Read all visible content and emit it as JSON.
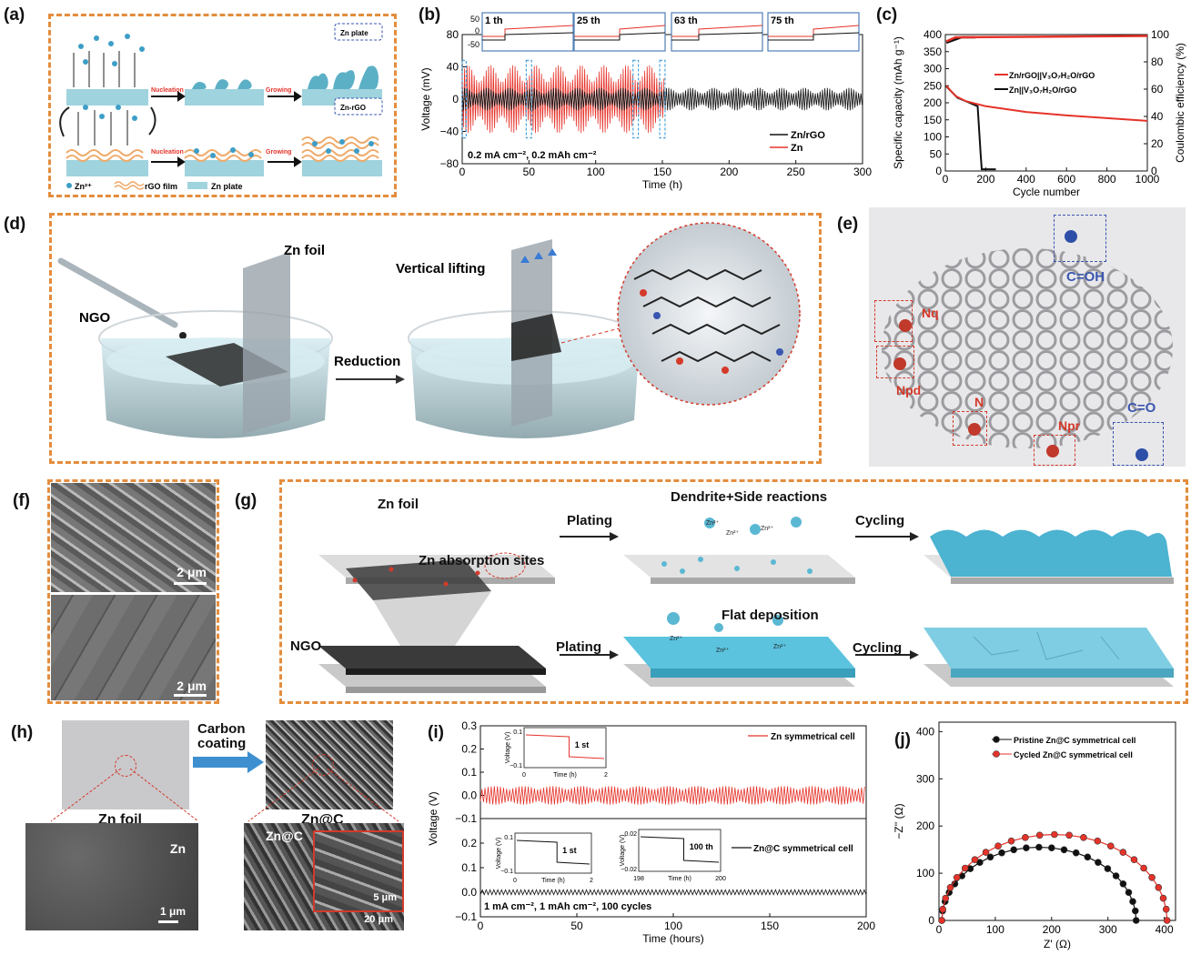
{
  "colors": {
    "orange_dash": "#e38d3d",
    "red": "#e5332a",
    "black": "#111111",
    "teal": "#5bb8d3",
    "navy": "#3a56b0"
  },
  "panels": {
    "a": {
      "label": "(a)",
      "top_tag": "Zn plate",
      "bottom_tag": "Zn-rGO",
      "nucleation": "Nucleation",
      "growing": "Growing",
      "legend": [
        "Zn²⁺",
        "rGO film",
        "Zn plate"
      ]
    },
    "b": {
      "label": "(b)",
      "insets": [
        "1 th",
        "25 th",
        "63 th",
        "75 th"
      ],
      "inset_ticks": [
        "50",
        "0",
        "-50"
      ],
      "annotation": "0.2 mA cm⁻², 0.2 mAh cm⁻²"
    },
    "c": {
      "label": "(c)"
    },
    "d": {
      "label": "(d)",
      "ngo": "NGO",
      "zn_foil": "Zn foil",
      "vertical_lifting": "Vertical lifting",
      "reduction": "Reduction"
    },
    "e": {
      "label": "(e)",
      "groups": [
        "C=OH",
        "Nq",
        "Npd",
        "N",
        "Npr",
        "C=O"
      ]
    },
    "f": {
      "label": "(f)",
      "scale": "2 μm"
    },
    "g": {
      "label": "(g)",
      "zn_foil": "Zn foil",
      "plating": "Plating",
      "cycling": "Cycling",
      "dendrite": "Dendrite+Side reactions",
      "absorption": "Zn absorption sites",
      "ngo": "NGO",
      "flat": "Flat deposition",
      "ion": "Zn²⁺"
    },
    "h": {
      "label": "(h)",
      "carbon_coating": "Carbon\ncoating",
      "zn_foil": "Zn foil",
      "znc": "Zn@C",
      "sem_zn": "Zn",
      "sem_znc": "Zn@C",
      "scale1": "1 μm",
      "scale2": "20 μm",
      "scale3": "5 μm"
    },
    "i": {
      "label": "(i)",
      "inset1_title": "1 st",
      "inset2_title": "1 st",
      "inset3_title": "100 th",
      "annotation": "1 mA cm⁻², 1 mAh cm⁻², 100 cycles"
    },
    "j": {
      "label": "(j)"
    }
  },
  "chart_data": [
    {
      "id": "b",
      "type": "line",
      "xlabel": "Time (h)",
      "ylabel": "Voltage (mV)",
      "xlim": [
        0,
        300
      ],
      "ylim": [
        -80,
        80
      ],
      "xticks": [
        0,
        50,
        100,
        150,
        200,
        250,
        300
      ],
      "yticks": [
        -80,
        -40,
        0,
        40,
        80
      ],
      "series": [
        {
          "name": "Zn/rGO",
          "color": "#111111",
          "t_end": 300,
          "amplitude_mV": 14
        },
        {
          "name": "Zn",
          "color": "#e5332a",
          "t_end": 152,
          "amplitude_mV": 42
        }
      ]
    },
    {
      "id": "c",
      "type": "line",
      "xlabel": "Cycle number",
      "ylabel": "Specific capacity (mAh g⁻¹)",
      "y2label": "Coulombic efficiency (%)",
      "xlim": [
        0,
        1000
      ],
      "ylim": [
        0,
        400
      ],
      "y2lim": [
        0,
        100
      ],
      "xticks": [
        0,
        200,
        400,
        600,
        800,
        1000
      ],
      "yticks": [
        0,
        50,
        100,
        150,
        200,
        250,
        300,
        350,
        400
      ],
      "y2ticks": [
        0,
        20,
        40,
        60,
        80,
        100
      ],
      "series": [
        {
          "name": "Zn/rGO||V₃O₇H₂O/rGO",
          "color": "#e5332a",
          "capacity": [
            [
              5,
              250
            ],
            [
              50,
              220
            ],
            [
              100,
              205
            ],
            [
              200,
              190
            ],
            [
              400,
              173
            ],
            [
              600,
              163
            ],
            [
              800,
              155
            ],
            [
              1000,
              147
            ]
          ],
          "efficiency": [
            [
              5,
              95
            ],
            [
              50,
              98
            ],
            [
              1000,
              99
            ]
          ]
        },
        {
          "name": "Zn||V₃O₇H₂O/rGO",
          "color": "#111111",
          "capacity": [
            [
              5,
              248
            ],
            [
              60,
              215
            ],
            [
              120,
              200
            ],
            [
              160,
              190
            ],
            [
              175,
              50
            ],
            [
              180,
              5
            ],
            [
              250,
              5
            ]
          ],
          "efficiency": [
            [
              5,
              94
            ],
            [
              80,
              98
            ],
            [
              150,
              98
            ]
          ]
        }
      ]
    },
    {
      "id": "i",
      "type": "line",
      "xlabel": "Time (hours)",
      "ylabel": "Voltage (V)",
      "xlim": [
        0,
        200
      ],
      "xticks": [
        0,
        50,
        100,
        150,
        200
      ],
      "top_ylim": [
        -0.1,
        0.3
      ],
      "bottom_ylim": [
        -0.1,
        0.3
      ],
      "yticks": [
        -0.1,
        0.0,
        0.1,
        0.2,
        0.3
      ],
      "series": [
        {
          "name": "Zn symmetrical cell",
          "color": "#e5332a",
          "amplitude_V": 0.04
        },
        {
          "name": "Zn@C symmetrical cell",
          "color": "#111111",
          "amplitude_V": 0.01
        }
      ],
      "insets": [
        {
          "title": "1 st",
          "xlabel": "Time (h)",
          "ylabel": "Voltage (V)",
          "xlim": [
            0,
            2
          ],
          "ylim": [
            -0.1,
            0.1
          ]
        },
        {
          "title": "1 st",
          "xlabel": "Time (h)",
          "ylabel": "Voltage (V)",
          "xlim": [
            0,
            2
          ],
          "ylim": [
            -0.1,
            0.1
          ]
        },
        {
          "title": "100 th",
          "xlabel": "Time (h)",
          "ylabel": "Voltage (V)",
          "xlim": [
            198,
            200
          ],
          "ylim": [
            -0.02,
            0.02
          ]
        }
      ]
    },
    {
      "id": "j",
      "type": "scatter",
      "xlabel": "Z' (Ω)",
      "ylabel": "−Z'' (Ω)",
      "xlim": [
        0,
        420
      ],
      "ylim": [
        0,
        420
      ],
      "xticks": [
        0,
        100,
        200,
        300,
        400
      ],
      "yticks": [
        0,
        100,
        200,
        300,
        400
      ],
      "series": [
        {
          "name": "Pristine Zn@C symmetrical cell",
          "color": "#111111",
          "x0": 5,
          "x1": 350,
          "peak": 155
        },
        {
          "name": "Cycled Zn@C symmetrical cell",
          "color": "#e5332a",
          "x0": 5,
          "x1": 405,
          "peak": 182
        }
      ]
    }
  ]
}
